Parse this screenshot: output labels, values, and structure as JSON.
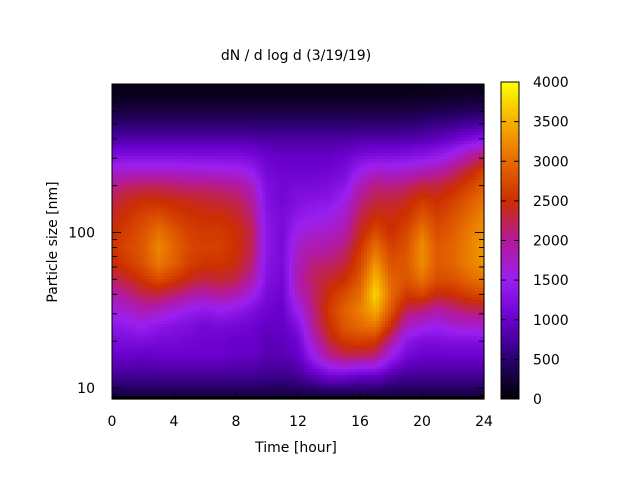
{
  "chart_data": {
    "type": "heatmap",
    "title": "dN / d log d (3/19/19)",
    "xlabel": "Time [hour]",
    "ylabel": "Particle size [nm]",
    "x_range": [
      0,
      24
    ],
    "x_ticks": [
      0,
      4,
      8,
      12,
      16,
      20,
      24
    ],
    "y_scale": "log",
    "y_range": [
      8.5,
      900
    ],
    "y_tick_labels": [
      {
        "value": 10,
        "label": "10"
      },
      {
        "value": 100,
        "label": "100"
      }
    ],
    "colorbar": {
      "range": [
        0,
        4000
      ],
      "ticks": [
        0,
        500,
        1000,
        1500,
        2000,
        2500,
        3000,
        3500,
        4000
      ],
      "palette": [
        "#000000",
        "#2a0070",
        "#6a00cc",
        "#9a1ff0",
        "#b3199a",
        "#cc2e00",
        "#e66a00",
        "#f5b000",
        "#ffff00"
      ]
    },
    "grid": false,
    "legend": "colorbar-right",
    "times_hours": [
      0,
      1,
      2,
      3,
      4,
      5,
      6,
      7,
      8,
      9,
      10,
      11,
      12,
      13,
      14,
      15,
      16,
      17,
      18,
      19,
      20,
      21,
      22,
      23,
      24
    ],
    "sizes_nm": [
      9,
      12,
      16,
      20,
      25,
      32,
      40,
      50,
      63,
      80,
      100,
      125,
      160,
      200,
      250,
      320,
      400,
      500,
      630,
      800
    ],
    "concentration": [
      [
        300,
        700,
        1000,
        1150,
        1350,
        1600,
        1900,
        2200,
        2450,
        2550,
        2500,
        2400,
        2250,
        2050,
        1650,
        1150,
        800,
        500,
        250,
        100
      ],
      [
        300,
        700,
        1000,
        1200,
        1400,
        1750,
        2050,
        2350,
        2600,
        2700,
        2650,
        2550,
        2400,
        2150,
        1700,
        1150,
        800,
        500,
        250,
        100
      ],
      [
        300,
        700,
        950,
        1200,
        1500,
        1900,
        2250,
        2550,
        2800,
        2850,
        2800,
        2700,
        2500,
        2200,
        1700,
        1150,
        800,
        500,
        250,
        100
      ],
      [
        300,
        700,
        1000,
        1150,
        1350,
        1800,
        2300,
        2750,
        3100,
        3200,
        3050,
        2800,
        2500,
        2200,
        1700,
        1150,
        800,
        500,
        250,
        100
      ],
      [
        300,
        700,
        1000,
        1150,
        1250,
        1650,
        2150,
        2600,
        2900,
        2950,
        2850,
        2650,
        2450,
        2150,
        1700,
        1150,
        800,
        500,
        250,
        100
      ],
      [
        300,
        700,
        1000,
        1100,
        1200,
        1500,
        2000,
        2400,
        2650,
        2700,
        2650,
        2550,
        2400,
        2100,
        1650,
        1150,
        800,
        500,
        250,
        100
      ],
      [
        300,
        700,
        1000,
        1050,
        1100,
        1400,
        1900,
        2300,
        2550,
        2650,
        2600,
        2500,
        2350,
        2100,
        1650,
        1150,
        800,
        500,
        250,
        100
      ],
      [
        300,
        700,
        1000,
        1050,
        1150,
        1500,
        2000,
        2350,
        2550,
        2650,
        2600,
        2500,
        2300,
        2050,
        1600,
        1150,
        800,
        500,
        250,
        100
      ],
      [
        300,
        700,
        950,
        1000,
        1100,
        1400,
        1900,
        2250,
        2450,
        2500,
        2500,
        2400,
        2250,
        2000,
        1600,
        1150,
        800,
        500,
        250,
        100
      ],
      [
        300,
        700,
        950,
        1000,
        1050,
        1250,
        1600,
        1950,
        2150,
        2250,
        2250,
        2150,
        2000,
        1800,
        1450,
        1100,
        800,
        500,
        250,
        100
      ],
      [
        300,
        650,
        850,
        900,
        950,
        1050,
        1150,
        1250,
        1300,
        1350,
        1350,
        1300,
        1250,
        1200,
        1100,
        1000,
        750,
        500,
        250,
        100
      ],
      [
        300,
        650,
        850,
        900,
        950,
        1000,
        1050,
        1100,
        1150,
        1150,
        1150,
        1150,
        1100,
        1100,
        1050,
        950,
        750,
        500,
        250,
        100
      ],
      [
        300,
        700,
        950,
        1050,
        1250,
        1550,
        1800,
        1900,
        1850,
        1750,
        1600,
        1400,
        1250,
        1150,
        1050,
        950,
        750,
        500,
        250,
        100
      ],
      [
        300,
        900,
        1500,
        1800,
        2000,
        2100,
        2150,
        2200,
        2100,
        1900,
        1700,
        1500,
        1300,
        1150,
        1050,
        950,
        750,
        500,
        250,
        100
      ],
      [
        300,
        1100,
        2000,
        2300,
        2500,
        2600,
        2500,
        2350,
        2150,
        1950,
        1750,
        1550,
        1350,
        1200,
        1050,
        950,
        750,
        500,
        250,
        100
      ],
      [
        300,
        1100,
        2200,
        2600,
        2850,
        2900,
        2750,
        2500,
        2300,
        2100,
        1900,
        1750,
        1550,
        1350,
        1150,
        1000,
        750,
        500,
        250,
        100
      ],
      [
        300,
        1000,
        2200,
        2650,
        3000,
        3150,
        3000,
        2850,
        2700,
        2550,
        2400,
        2250,
        2050,
        1850,
        1500,
        1100,
        800,
        500,
        250,
        100
      ],
      [
        300,
        1000,
        2100,
        2600,
        3100,
        3500,
        3750,
        3550,
        3300,
        3050,
        2750,
        2500,
        2300,
        2100,
        1700,
        1150,
        800,
        500,
        250,
        100
      ],
      [
        300,
        800,
        1500,
        2000,
        2500,
        2850,
        3000,
        2950,
        2800,
        2650,
        2500,
        2450,
        2300,
        2050,
        1650,
        1150,
        800,
        500,
        250,
        100
      ],
      [
        300,
        700,
        1100,
        1350,
        1800,
        2250,
        2600,
        2800,
        2850,
        2800,
        2700,
        2550,
        2400,
        2150,
        1700,
        1200,
        800,
        500,
        250,
        100
      ],
      [
        300,
        700,
        1000,
        1200,
        1600,
        2150,
        2700,
        3050,
        3250,
        3250,
        3100,
        2850,
        2600,
        2300,
        1800,
        1250,
        850,
        550,
        280,
        120
      ],
      [
        300,
        700,
        1000,
        1200,
        1500,
        1950,
        2450,
        2750,
        2850,
        2850,
        2750,
        2650,
        2500,
        2300,
        1900,
        1350,
        900,
        600,
        300,
        120
      ],
      [
        300,
        700,
        1000,
        1250,
        1650,
        2100,
        2500,
        2800,
        2950,
        2950,
        2900,
        2800,
        2650,
        2450,
        2100,
        1550,
        1000,
        650,
        330,
        130
      ],
      [
        300,
        700,
        1000,
        1250,
        1700,
        2200,
        2650,
        2950,
        3150,
        3150,
        3100,
        3000,
        2850,
        2650,
        2350,
        1850,
        1150,
        700,
        350,
        140
      ],
      [
        300,
        700,
        1000,
        1250,
        1700,
        2250,
        2750,
        3100,
        3300,
        3350,
        3300,
        3200,
        3050,
        2900,
        2650,
        2100,
        1300,
        750,
        370,
        150
      ]
    ]
  }
}
